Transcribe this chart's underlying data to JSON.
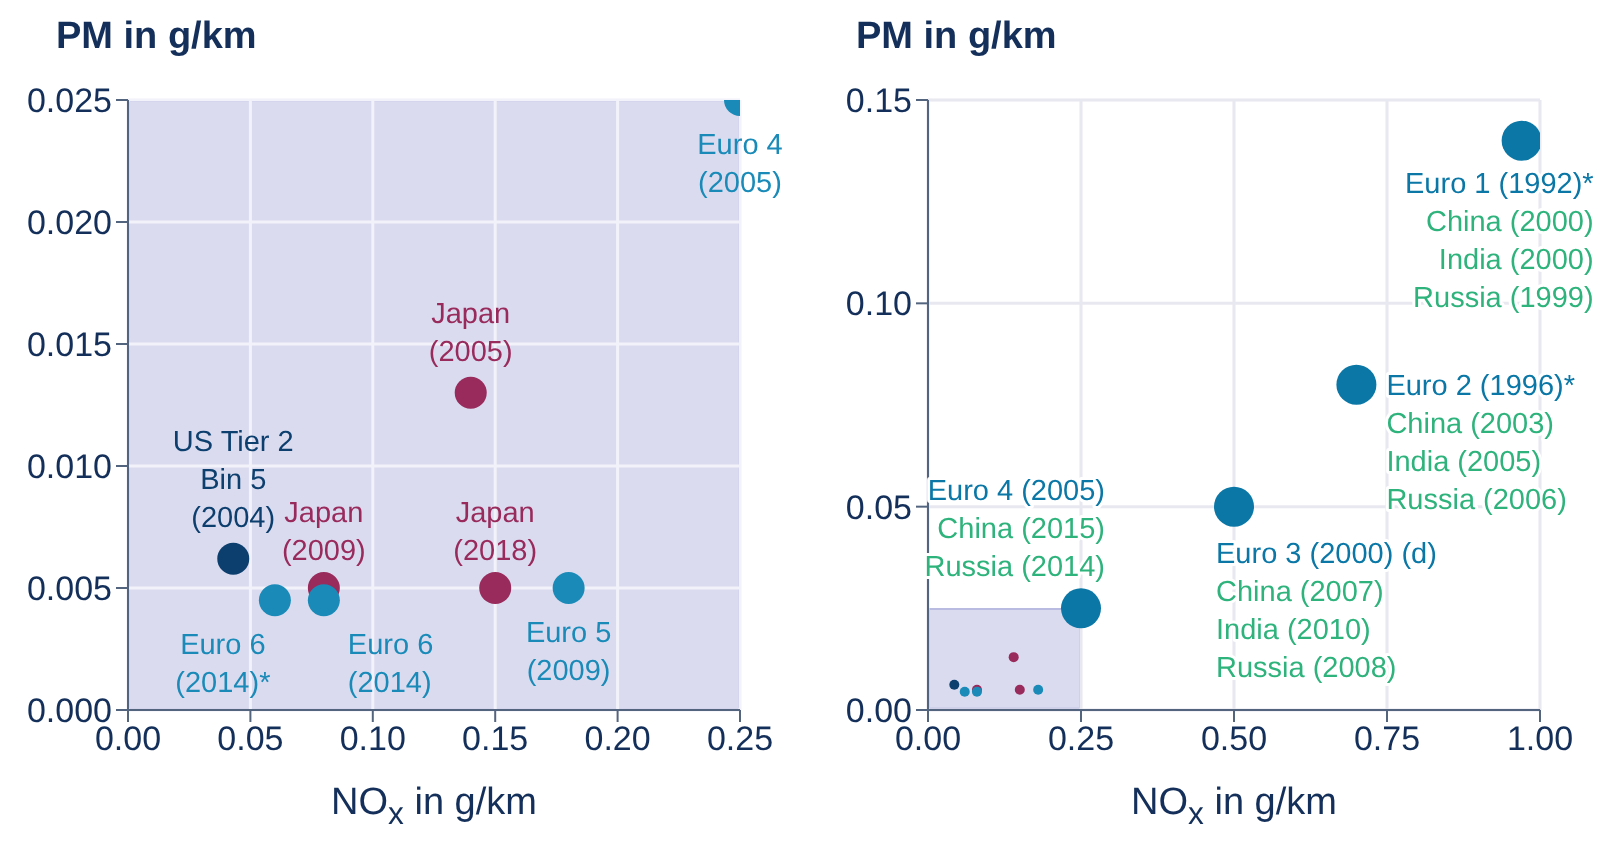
{
  "chart_data": [
    {
      "type": "scatter",
      "xlabel": "NO$_{x}$ in g/km",
      "ylabel": "PM in g/km",
      "xlim": [
        0,
        0.25
      ],
      "ylim": [
        0,
        0.025
      ],
      "xticks": [
        {
          "value": 0,
          "label": "0.00"
        },
        0.05,
        {
          "value": 0.1,
          "label": "0.10"
        },
        0.15,
        {
          "value": 0.2,
          "label": "0.20"
        },
        0.25
      ],
      "yticks": [
        {
          "value": 0,
          "label": "0.000"
        },
        0.005,
        {
          "value": 0.01,
          "label": "0.010"
        },
        0.015,
        {
          "value": 0.02,
          "label": "0.020"
        },
        0.025
      ],
      "grid": true,
      "marker": "circle",
      "series": [
        {
          "name": "US Tier 2\nBin 5\n(2004)",
          "color": "#0d3f6e",
          "x": [
            0.043
          ],
          "values": [
            0.0062
          ]
        },
        {
          "name": "Euro 6\n(2014)*",
          "color": "#1a8bb8",
          "x": [
            0.06
          ],
          "values": [
            0.0045
          ]
        },
        {
          "name": "Japan\n(2009)",
          "color": "#982a5c",
          "x": [
            0.08
          ],
          "values": [
            0.005
          ]
        },
        {
          "name": "Euro 6\n(2014)",
          "color": "#1a8bb8",
          "x": [
            0.08
          ],
          "values": [
            0.0045
          ]
        },
        {
          "name": "Japan\n(2005)",
          "color": "#982a5c",
          "x": [
            0.14
          ],
          "values": [
            0.013
          ]
        },
        {
          "name": "Japan\n(2018)",
          "color": "#982a5c",
          "x": [
            0.15
          ],
          "values": [
            0.005
          ]
        },
        {
          "name": "Euro 5\n(2009)",
          "color": "#1a8bb8",
          "x": [
            0.18
          ],
          "values": [
            0.005
          ]
        },
        {
          "name": "Euro 4\n(2005)",
          "color": "#1a8bb8",
          "x": [
            0.25
          ],
          "values": [
            0.025
          ]
        }
      ]
    },
    {
      "type": "scatter",
      "xlabel": "NO$_{x}$ in g/km",
      "ylabel": "PM in g/km",
      "xlim": [
        0,
        1
      ],
      "ylim": [
        0,
        0.15
      ],
      "xticks": [
        {
          "value": 0,
          "label": "0.00"
        },
        0.25,
        {
          "value": 0.5,
          "label": "0.50"
        },
        0.75,
        {
          "value": 1,
          "label": "1.00"
        }
      ],
      "yticks": [
        {
          "value": 0,
          "label": "0.00"
        },
        0.05,
        {
          "value": 0.1,
          "label": "0.10"
        },
        0.15
      ],
      "grid": true,
      "marker": "circle",
      "series": [
        {
          "color": "#0d3f6e",
          "x": [
            0.043
          ],
          "values": [
            0.0062
          ]
        },
        {
          "color": "#982a5c",
          "x": [
            0.08,
            0.14,
            0.15
          ],
          "values": [
            0.005,
            0.013,
            0.005
          ]
        },
        {
          "color": "#1a8bb8",
          "x": [
            0.06,
            0.08,
            0.18
          ],
          "values": [
            0.0045,
            0.0045,
            0.005
          ]
        },
        {
          "name": "Euro 4 (2005)\nChina (2015)\nRussia (2014)",
          "color": "#0a77a6",
          "x": [
            0.25
          ],
          "values": [
            0.025
          ]
        },
        {
          "name": "Euro 3 (2000) (d)\nChina (2007)\nIndia (2010)\nRussia (2008)",
          "color": "#0a77a6",
          "x": [
            0.5
          ],
          "values": [
            0.05
          ]
        },
        {
          "name": "Euro 2 (1996)*\nChina (2003)\nIndia (2005)\nRussia (2006)",
          "color": "#0a77a6",
          "x": [
            0.7
          ],
          "values": [
            0.08
          ]
        },
        {
          "name": "Euro 1 (1992)*\nChina (2000)\nIndia (2000)\nRussia (1999)",
          "color": "#0a77a6",
          "x": [
            0.97
          ],
          "values": [
            0.14
          ]
        }
      ]
    }
  ]
}
